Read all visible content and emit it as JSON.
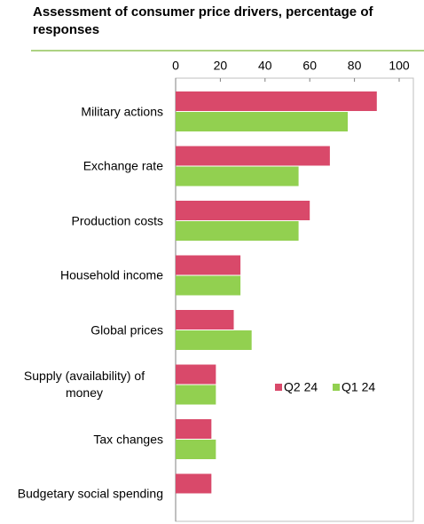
{
  "chart_data": {
    "type": "bar",
    "orientation": "horizontal",
    "title": "Assessment of consumer price drivers, percentage of responses",
    "categories": [
      "Military actions",
      "Exchange rate",
      "Production costs",
      "Household income",
      "Global prices",
      "Supply (availability) of money",
      "Tax changes",
      "Budgetary social spending"
    ],
    "series": [
      {
        "name": "Q2 24",
        "color": "#d9496a",
        "values": [
          90,
          69,
          60,
          29,
          26,
          18,
          16,
          16
        ]
      },
      {
        "name": "Q1 24",
        "color": "#92d050",
        "values": [
          77,
          55,
          55,
          29,
          34,
          18,
          18,
          null
        ]
      }
    ],
    "xlim": [
      0,
      100
    ],
    "xticks": [
      0,
      20,
      40,
      60,
      80,
      100
    ],
    "legend": "center-right"
  }
}
